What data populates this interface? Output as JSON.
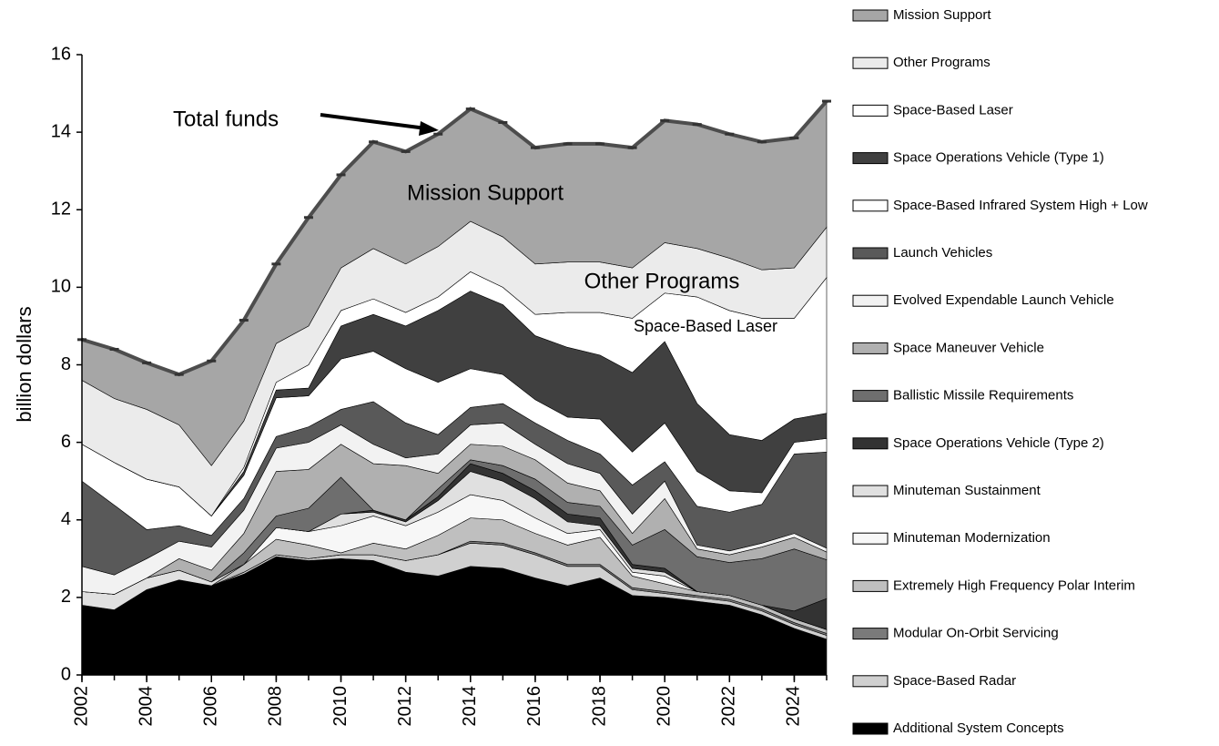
{
  "chart_data": {
    "type": "stacked_area",
    "y_label": "billion dollars",
    "annotations": [
      "Total funds",
      "Mission Support",
      "Other Programs",
      "Space-Based Laser"
    ],
    "x": [
      2002,
      2003,
      2004,
      2005,
      2006,
      2007,
      2008,
      2009,
      2010,
      2011,
      2012,
      2013,
      2014,
      2015,
      2016,
      2017,
      2018,
      2019,
      2020,
      2021,
      2022,
      2023,
      2024,
      2025
    ],
    "xlim": [
      2002,
      2025
    ],
    "xticks": [
      2002,
      2004,
      2006,
      2008,
      2010,
      2012,
      2014,
      2016,
      2018,
      2020,
      2022,
      2024
    ],
    "ylim": [
      0,
      16
    ],
    "yticks": [
      0,
      2,
      4,
      6,
      8,
      10,
      12,
      14,
      16
    ],
    "series": [
      {
        "name": "Additional System Concepts",
        "color": "#000000",
        "values": [
          1.8,
          1.68,
          2.2,
          2.45,
          2.3,
          2.6,
          3.05,
          2.95,
          3.0,
          2.95,
          2.65,
          2.55,
          2.8,
          2.75,
          2.5,
          2.3,
          2.5,
          2.05,
          2.0,
          1.9,
          1.8,
          1.55,
          1.2,
          0.92
        ]
      },
      {
        "name": "Space-Based Radar",
        "color": "#d0d0d0",
        "values": [
          0,
          0,
          0,
          0,
          0,
          0.05,
          0.05,
          0.05,
          0.1,
          0.15,
          0.3,
          0.55,
          0.6,
          0.6,
          0.6,
          0.5,
          0.3,
          0.15,
          0.1,
          0.1,
          0.1,
          0.1,
          0.1,
          0.1
        ]
      },
      {
        "name": "Modular On-Orbit Servicing",
        "color": "#7a7a7a",
        "values": [
          0,
          0,
          0,
          0,
          0,
          0,
          0,
          0,
          0,
          0,
          0,
          0,
          0.05,
          0.05,
          0.05,
          0.05,
          0.05,
          0.05,
          0.05,
          0.05,
          0.05,
          0.05,
          0.05,
          0.05
        ]
      },
      {
        "name": "Extremely High Frequency Polar Interim",
        "color": "#bfbfbf",
        "values": [
          0,
          0,
          0,
          0,
          0,
          0.2,
          0.4,
          0.35,
          0.05,
          0.3,
          0.3,
          0.5,
          0.6,
          0.6,
          0.5,
          0.5,
          0.7,
          0.3,
          0.2,
          0.1,
          0.1,
          0.1,
          0.1,
          0.1
        ]
      },
      {
        "name": "Minuteman Modernization",
        "color": "#f7f7f7",
        "values": [
          0,
          0,
          0,
          0,
          0,
          0,
          0.3,
          0.35,
          0.7,
          0.7,
          0.6,
          0.6,
          0.6,
          0.5,
          0.4,
          0.3,
          0.2,
          0.1,
          0.2,
          0,
          0,
          0,
          0,
          0
        ]
      },
      {
        "name": "Minuteman Sustainment",
        "color": "#e0e0e0",
        "values": [
          0.35,
          0.4,
          0.3,
          0.25,
          0.1,
          0,
          0,
          0,
          0.3,
          0.1,
          0.1,
          0.3,
          0.6,
          0.5,
          0.5,
          0.3,
          0.1,
          0.1,
          0.1,
          0,
          0,
          0,
          0,
          0
        ]
      },
      {
        "name": "Space Operations Vehicle (Type 2)",
        "color": "#333333",
        "values": [
          0,
          0,
          0,
          0,
          0,
          0,
          0,
          0,
          0,
          0.05,
          0.05,
          0.1,
          0.2,
          0.2,
          0.2,
          0.2,
          0.2,
          0.1,
          0.1,
          0,
          0,
          0,
          0.2,
          0.8
        ]
      },
      {
        "name": "Ballistic Missile Requirements",
        "color": "#6e6e6e",
        "values": [
          0,
          0,
          0,
          0,
          0,
          0.3,
          0.3,
          0.6,
          0.95,
          0,
          0,
          0.2,
          0.1,
          0.2,
          0.3,
          0.3,
          0.3,
          0.5,
          1.0,
          0.9,
          0.85,
          1.2,
          1.6,
          1.0
        ]
      },
      {
        "name": "Space Maneuver Vehicle",
        "color": "#b0b0b0",
        "values": [
          0,
          0,
          0,
          0.3,
          0.3,
          0.5,
          1.15,
          1.0,
          0.85,
          1.2,
          1.4,
          0.4,
          0.4,
          0.5,
          0.5,
          0.5,
          0.4,
          0.3,
          0.8,
          0.2,
          0.2,
          0.3,
          0.3,
          0.2
        ]
      },
      {
        "name": "Evolved Expendable Launch Vehicle",
        "color": "#f2f2f2",
        "values": [
          0.65,
          0.5,
          0.5,
          0.45,
          0.6,
          0.6,
          0.6,
          0.7,
          0.5,
          0.5,
          0.2,
          0.5,
          0.5,
          0.6,
          0.4,
          0.5,
          0.45,
          0.5,
          0.45,
          0.1,
          0.1,
          0.1,
          0.1,
          0.1
        ]
      },
      {
        "name": "Launch Vehicles",
        "color": "#595959",
        "values": [
          2.2,
          1.8,
          0.75,
          0.4,
          0.3,
          0.3,
          0.3,
          0.4,
          0.4,
          1.1,
          0.9,
          0.5,
          0.45,
          0.5,
          0.55,
          0.6,
          0.5,
          0.75,
          0.5,
          1.0,
          1.0,
          1.0,
          2.05,
          2.48
        ]
      },
      {
        "name": "Space-Based Infrared System High + Low",
        "color": "#ffffff",
        "values": [
          0.95,
          1.1,
          1.3,
          1.0,
          0.5,
          0.6,
          1.0,
          0.8,
          1.3,
          1.3,
          1.4,
          1.35,
          1.0,
          0.75,
          0.6,
          0.6,
          0.9,
          0.85,
          1.0,
          0.9,
          0.55,
          0.3,
          0.3,
          0.35
        ]
      },
      {
        "name": "Space Operations Vehicle (Type 1)",
        "color": "#404040",
        "values": [
          0,
          0,
          0,
          0,
          0,
          0.1,
          0.2,
          0.2,
          0.85,
          0.95,
          1.1,
          1.85,
          2.0,
          1.8,
          1.65,
          1.8,
          1.65,
          2.05,
          2.1,
          1.75,
          1.45,
          1.35,
          0.6,
          0.65
        ]
      },
      {
        "name": "Space-Based Laser",
        "color": "#ffffff",
        "values": [
          0,
          0,
          0,
          0,
          0,
          0.1,
          0.2,
          0.6,
          0.4,
          0.4,
          0.35,
          0.35,
          0.5,
          0.45,
          0.55,
          0.9,
          1.1,
          1.4,
          1.25,
          2.75,
          3.2,
          3.15,
          2.6,
          3.5
        ]
      },
      {
        "name": "Other Programs",
        "color": "#ebebeb",
        "values": [
          1.65,
          1.65,
          1.8,
          1.6,
          1.3,
          1.2,
          1.0,
          1.0,
          1.1,
          1.3,
          1.25,
          1.3,
          1.3,
          1.3,
          1.3,
          1.3,
          1.3,
          1.3,
          1.3,
          1.25,
          1.35,
          1.25,
          1.3,
          1.3
        ]
      },
      {
        "name": "Mission Support",
        "color": "#a6a6a6",
        "values": [
          1.05,
          1.27,
          1.2,
          1.3,
          2.7,
          2.6,
          2.05,
          2.8,
          2.4,
          2.75,
          2.9,
          2.9,
          2.9,
          2.95,
          3.0,
          3.05,
          3.05,
          3.1,
          3.15,
          3.2,
          3.2,
          3.3,
          3.35,
          3.25
        ]
      }
    ]
  }
}
